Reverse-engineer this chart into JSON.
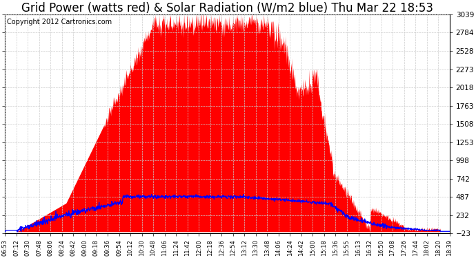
{
  "title": "Grid Power (watts red) & Solar Radiation (W/m2 blue) Thu Mar 22 18:53",
  "copyright": "Copyright 2012 Cartronics.com",
  "yticks": [
    3038.7,
    2783.6,
    2528.4,
    2273.3,
    2018.1,
    1763.0,
    1507.8,
    1252.7,
    997.6,
    742.4,
    487.3,
    232.1,
    -23.0
  ],
  "ymin": -23.0,
  "ymax": 3038.7,
  "time_labels": [
    "06:53",
    "07:12",
    "07:30",
    "07:48",
    "08:06",
    "08:24",
    "08:42",
    "09:00",
    "09:18",
    "09:36",
    "09:54",
    "10:12",
    "10:30",
    "10:48",
    "11:06",
    "11:24",
    "11:42",
    "12:00",
    "12:18",
    "12:36",
    "12:54",
    "13:12",
    "13:30",
    "13:48",
    "14:06",
    "14:24",
    "14:42",
    "15:00",
    "15:18",
    "15:36",
    "15:55",
    "16:13",
    "16:32",
    "16:50",
    "17:08",
    "17:26",
    "17:44",
    "18:02",
    "18:20",
    "18:39"
  ],
  "bg_color": "#ffffff",
  "grid_color": "#cccccc",
  "fill_color": "#ff0000",
  "line_color": "#0000ff",
  "title_fontsize": 12,
  "copyright_fontsize": 7
}
